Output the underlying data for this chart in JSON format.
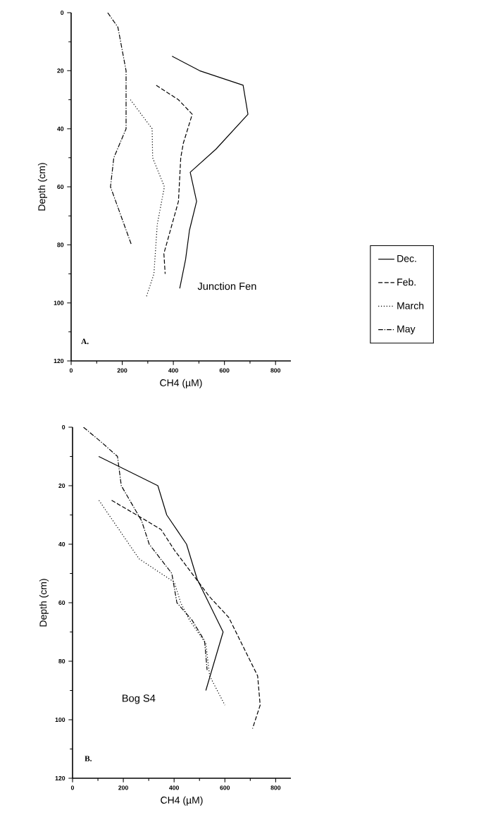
{
  "chart_data": [
    {
      "type": "line",
      "xlabel": "CH4 (µM)",
      "ylabel": "Depth (cm)",
      "xlim": [
        0,
        860
      ],
      "xticks": [
        0,
        200,
        400,
        600,
        800
      ],
      "ylim": [
        120,
        0
      ],
      "yticks": [
        0,
        20,
        40,
        60,
        80,
        100,
        120
      ],
      "marker": "none",
      "legend": "right",
      "annotations": [
        "Junction Fen",
        "A."
      ],
      "series": [
        {
          "name": "Dec.",
          "color": "#000000",
          "line_style": "solid",
          "x": [
            395,
            503,
            673,
            692,
            567,
            466,
            491,
            463,
            448,
            425
          ],
          "values": [
            15,
            20,
            25,
            35,
            47,
            55,
            65,
            75,
            85,
            95
          ]
        },
        {
          "name": "Feb.",
          "color": "#000000",
          "line_style": "dashed",
          "x": [
            333,
            420,
            474,
            439,
            429,
            420,
            363,
            368
          ],
          "values": [
            25,
            30,
            35,
            45,
            50,
            65,
            83,
            90
          ]
        },
        {
          "name": "March",
          "color": "#000000",
          "line_style": "dotted",
          "x": [
            232,
            317,
            319,
            365,
            337,
            324,
            294
          ],
          "values": [
            30,
            40,
            50,
            60,
            73,
            90,
            98
          ]
        },
        {
          "name": "May",
          "color": "#000000",
          "line_style": "dashdot",
          "x": [
            143,
            183,
            215,
            215,
            167,
            154,
            236
          ],
          "values": [
            0,
            5,
            20,
            40,
            50,
            60,
            80
          ]
        }
      ]
    },
    {
      "type": "line",
      "xlabel": "CH4 (µM)",
      "ylabel": "Depth (cm)",
      "xlim": [
        0,
        860
      ],
      "xticks": [
        0,
        200,
        400,
        600,
        800
      ],
      "ylim": [
        120,
        0
      ],
      "yticks": [
        0,
        20,
        40,
        60,
        80,
        100,
        120
      ],
      "marker": "none",
      "annotations": [
        "Bog S4",
        "B."
      ],
      "series": [
        {
          "color": "#000000",
          "line_style": "solid",
          "x": [
            103,
            336,
            371,
            449,
            491,
            593,
            525
          ],
          "values": [
            10,
            20,
            30,
            40,
            52,
            70,
            90
          ]
        },
        {
          "color": "#000000",
          "line_style": "dashed",
          "x": [
            154,
            272,
            349,
            401,
            540,
            615,
            729,
            739,
            709
          ],
          "values": [
            25,
            31,
            35,
            42,
            58,
            65,
            85,
            95,
            103
          ]
        },
        {
          "color": "#000000",
          "line_style": "dotted",
          "x": [
            104,
            262,
            401,
            426,
            461,
            525,
            540,
            600
          ],
          "values": [
            25,
            45,
            53,
            60,
            66,
            74,
            85,
            95
          ]
        },
        {
          "color": "#000000",
          "line_style": "dashdot",
          "x": [
            43,
            112,
            177,
            192,
            272,
            302,
            391,
            411,
            471,
            520,
            530
          ],
          "values": [
            0,
            5,
            10,
            20,
            32,
            40,
            50,
            60,
            66,
            73,
            83
          ]
        }
      ]
    }
  ]
}
